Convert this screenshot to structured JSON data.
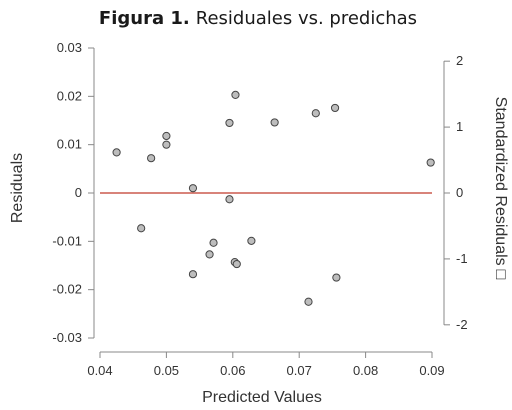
{
  "chart_data": {
    "type": "scatter",
    "title_label": "Figura 1.",
    "title_text": "Residuales vs. predichas",
    "xlabel": "Predicted Values",
    "ylabel": "Residuals",
    "y2label": "Standardized Residuals",
    "y2label_glyph": "□",
    "xlim": [
      0.04,
      0.09
    ],
    "ylim": [
      -0.03,
      0.03
    ],
    "y2lim": [
      -2.2,
      2.2
    ],
    "x_ticks": [
      "0.04",
      "0.05",
      "0.06",
      "0.07",
      "0.08",
      "0.09"
    ],
    "y_ticks": [
      "-0.03",
      "-0.02",
      "-0.01",
      "0",
      "0.01",
      "0.02",
      "0.03"
    ],
    "y2_ticks": [
      "-2",
      "-1",
      "0",
      "1",
      "2"
    ],
    "reference_line": {
      "y": 0,
      "color": "#c0392b"
    },
    "points": [
      {
        "x": 0.0425,
        "y": 0.0084
      },
      {
        "x": 0.0462,
        "y": -0.0073
      },
      {
        "x": 0.0477,
        "y": 0.0072
      },
      {
        "x": 0.05,
        "y": 0.0118
      },
      {
        "x": 0.05,
        "y": 0.01
      },
      {
        "x": 0.054,
        "y": 0.001
      },
      {
        "x": 0.054,
        "y": -0.0168
      },
      {
        "x": 0.0565,
        "y": -0.0127
      },
      {
        "x": 0.0571,
        "y": -0.0103
      },
      {
        "x": 0.0595,
        "y": 0.0145
      },
      {
        "x": 0.0595,
        "y": -0.0013
      },
      {
        "x": 0.0604,
        "y": 0.0203
      },
      {
        "x": 0.0603,
        "y": -0.0143
      },
      {
        "x": 0.0606,
        "y": -0.0147
      },
      {
        "x": 0.0628,
        "y": -0.0099
      },
      {
        "x": 0.0663,
        "y": 0.0146
      },
      {
        "x": 0.0714,
        "y": -0.0225
      },
      {
        "x": 0.0725,
        "y": 0.0165
      },
      {
        "x": 0.0754,
        "y": 0.0176
      },
      {
        "x": 0.0756,
        "y": -0.0175
      },
      {
        "x": 0.0898,
        "y": 0.0063
      }
    ]
  }
}
